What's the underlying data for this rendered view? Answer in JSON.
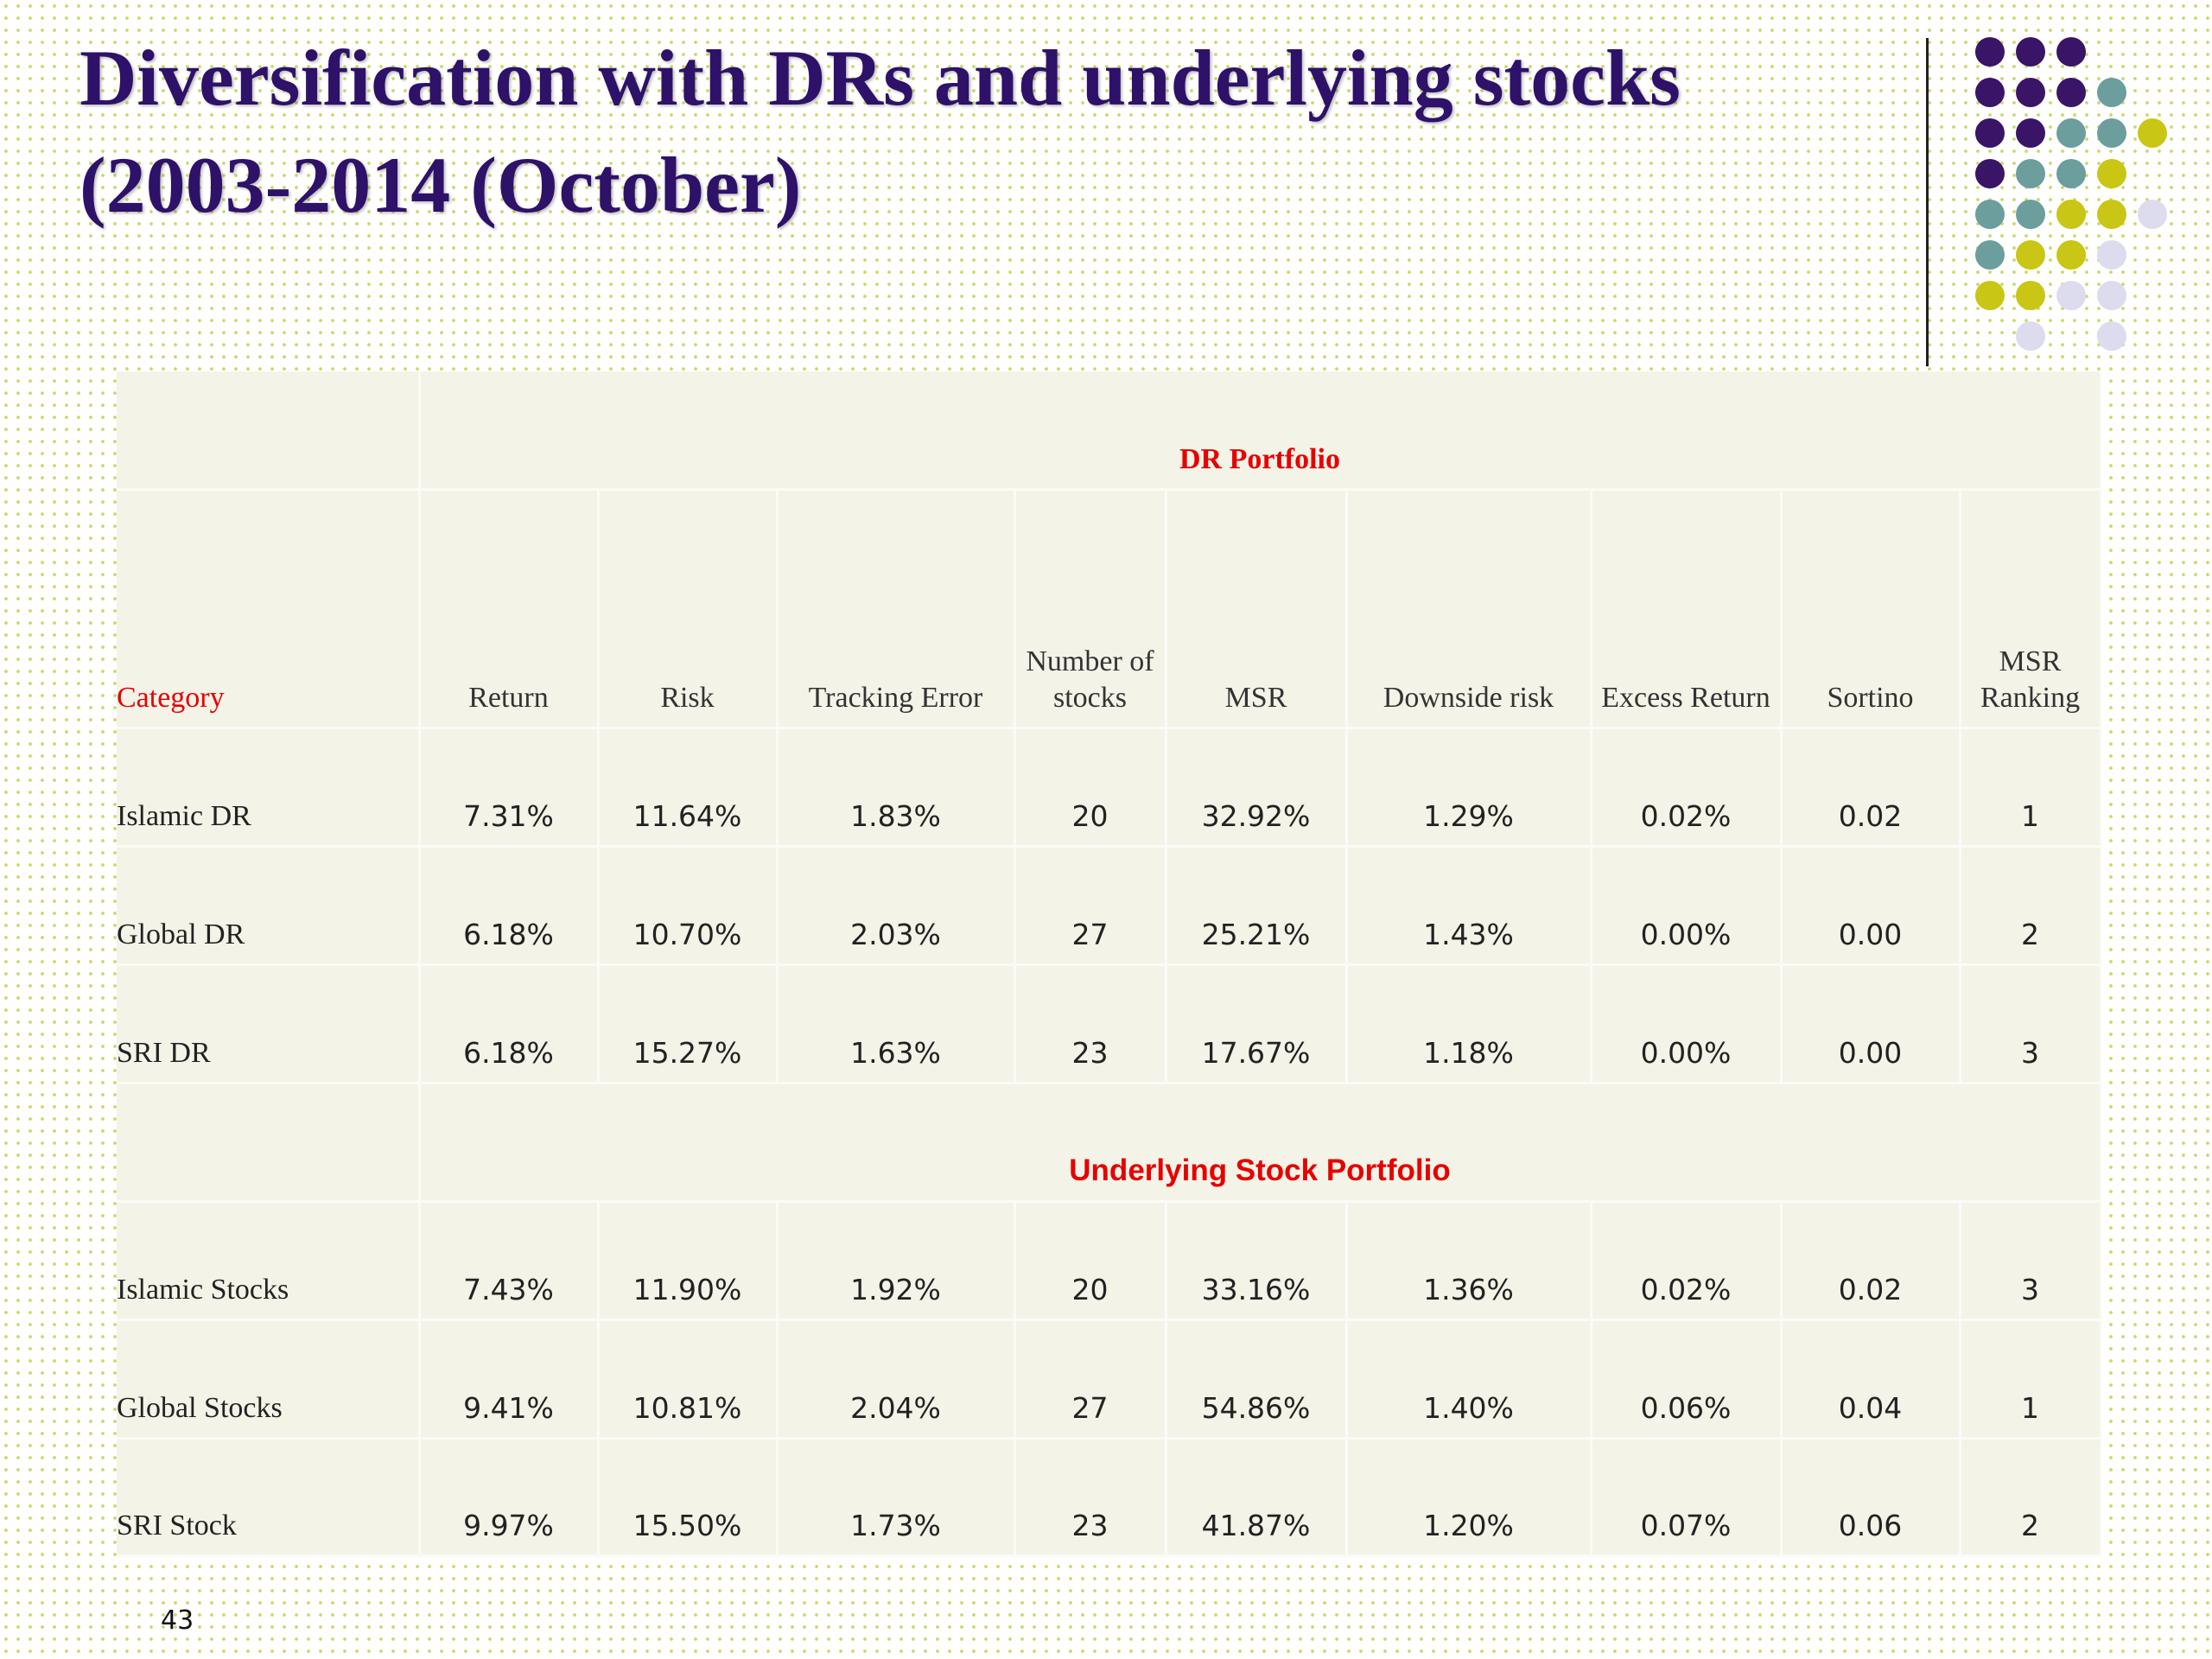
{
  "title": {
    "line1": "Diversification with DRs and underlying stocks",
    "line2": "(2003-2014 (October)"
  },
  "colors": {
    "title": "#2e1168",
    "accent_red": "#e60000",
    "dot_purple": "#3a1466",
    "dot_teal": "#6b9e9c",
    "dot_olive": "#c9c615",
    "dot_lavender": "#dcdcee"
  },
  "table": {
    "headers": {
      "category": "Category",
      "return": "Return",
      "risk": "Risk",
      "tracking_error": "Tracking Error",
      "num_stocks_1": "Number of",
      "num_stocks_2": "stocks",
      "msr": "MSR",
      "downside": "Downside risk",
      "excess": "Excess Return",
      "sortino": "Sortino",
      "ranking_1": "MSR",
      "ranking_2": "Ranking"
    },
    "sections": [
      {
        "title": "DR Portfolio",
        "rows": [
          {
            "category": "Islamic DR",
            "return": "7.31%",
            "risk": "11.64%",
            "tracking_error": "1.83%",
            "num_stocks": "20",
            "msr": "32.92%",
            "downside": "1.29%",
            "excess": "0.02%",
            "sortino": "0.02",
            "ranking": "1"
          },
          {
            "category": "Global DR",
            "return": "6.18%",
            "risk": "10.70%",
            "tracking_error": "2.03%",
            "num_stocks": "27",
            "msr": "25.21%",
            "downside": "1.43%",
            "excess": "0.00%",
            "sortino": "0.00",
            "ranking": "2"
          },
          {
            "category": "SRI DR",
            "return": "6.18%",
            "risk": "15.27%",
            "tracking_error": "1.63%",
            "num_stocks": "23",
            "msr": "17.67%",
            "downside": "1.18%",
            "excess": "0.00%",
            "sortino": "0.00",
            "ranking": "3"
          }
        ]
      },
      {
        "title": "Underlying Stock Portfolio",
        "rows": [
          {
            "category": "Islamic Stocks",
            "return": "7.43%",
            "risk": "11.90%",
            "tracking_error": "1.92%",
            "num_stocks": "20",
            "msr": "33.16%",
            "downside": "1.36%",
            "excess": "0.02%",
            "sortino": "0.02",
            "ranking": "3"
          },
          {
            "category": "Global Stocks",
            "return": "9.41%",
            "risk": "10.81%",
            "tracking_error": "2.04%",
            "num_stocks": "27",
            "msr": "54.86%",
            "downside": "1.40%",
            "excess": "0.06%",
            "sortino": "0.04",
            "ranking": "1"
          },
          {
            "category": "SRI Stock",
            "return": "9.97%",
            "risk": "15.50%",
            "tracking_error": "1.73%",
            "num_stocks": "23",
            "msr": "41.87%",
            "downside": "1.20%",
            "excess": "0.07%",
            "sortino": "0.06",
            "ranking": "2"
          }
        ]
      }
    ]
  },
  "slide_number": "43"
}
